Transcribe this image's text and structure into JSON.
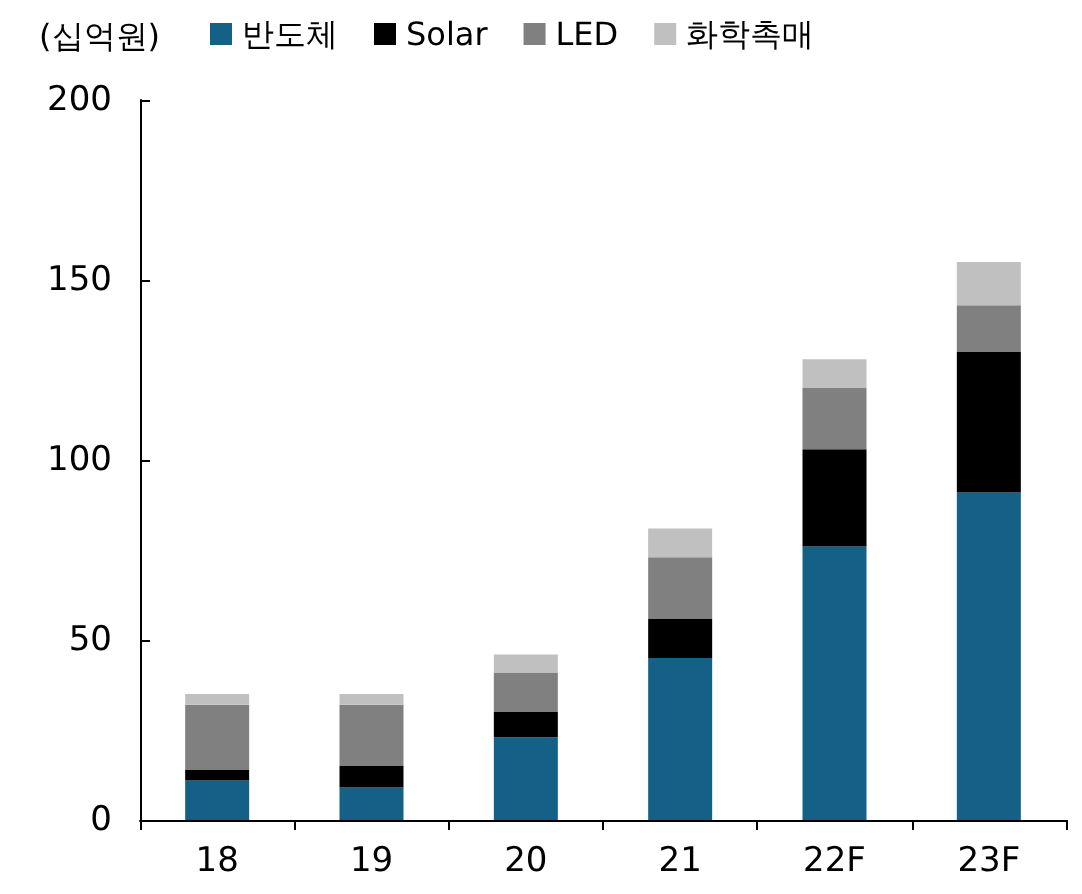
{
  "chart_data": {
    "type": "bar",
    "stacked": true,
    "ylabel": "(십억원)",
    "categories": [
      "18",
      "19",
      "20",
      "21",
      "22F",
      "23F"
    ],
    "series": [
      {
        "name": "반도체",
        "color": "#156087",
        "values": [
          11,
          9,
          23,
          45,
          76,
          91
        ]
      },
      {
        "name": "Solar",
        "color": "#000000",
        "values": [
          3,
          6,
          7,
          11,
          27,
          39
        ]
      },
      {
        "name": "LED",
        "color": "#808080",
        "values": [
          18,
          17,
          11,
          17,
          17,
          13
        ]
      },
      {
        "name": "화학촉매",
        "color": "#c0c0c0",
        "values": [
          3,
          3,
          5,
          8,
          8,
          12
        ]
      }
    ],
    "ylim": [
      0,
      200
    ],
    "yticks": [
      0,
      50,
      100,
      150,
      200
    ],
    "grid": false,
    "legend": "top"
  }
}
